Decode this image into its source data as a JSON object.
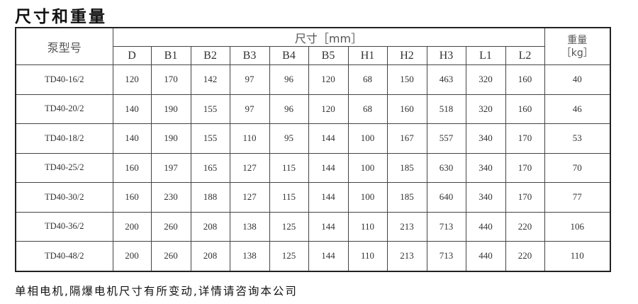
{
  "title": "尺寸和重量",
  "table": {
    "model_header": "泵型号",
    "dim_header": "尺寸［mm］",
    "weight_header_line1": "重量",
    "weight_header_line2": "［kg］",
    "columns": [
      "D",
      "B1",
      "B2",
      "B3",
      "B4",
      "B5",
      "H1",
      "H2",
      "H3",
      "L1",
      "L2"
    ],
    "rows": [
      {
        "model": "TD40-16/2",
        "values": [
          "120",
          "170",
          "142",
          "97",
          "96",
          "120",
          "68",
          "150",
          "463",
          "320",
          "160"
        ],
        "weight": "40"
      },
      {
        "model": "TD40-20/2",
        "values": [
          "140",
          "190",
          "155",
          "97",
          "96",
          "120",
          "68",
          "160",
          "518",
          "320",
          "160"
        ],
        "weight": "46"
      },
      {
        "model": "TD40-18/2",
        "values": [
          "140",
          "190",
          "155",
          "110",
          "95",
          "144",
          "100",
          "167",
          "557",
          "340",
          "170"
        ],
        "weight": "53"
      },
      {
        "model": "TD40-25/2",
        "values": [
          "160",
          "197",
          "165",
          "127",
          "115",
          "144",
          "100",
          "185",
          "630",
          "340",
          "170"
        ],
        "weight": "70"
      },
      {
        "model": "TD40-30/2",
        "values": [
          "160",
          "230",
          "188",
          "127",
          "115",
          "144",
          "100",
          "185",
          "640",
          "340",
          "170"
        ],
        "weight": "77"
      },
      {
        "model": "TD40-36/2",
        "values": [
          "200",
          "260",
          "208",
          "138",
          "125",
          "144",
          "110",
          "213",
          "713",
          "440",
          "220"
        ],
        "weight": "106"
      },
      {
        "model": "TD40-48/2",
        "values": [
          "200",
          "260",
          "208",
          "138",
          "125",
          "144",
          "110",
          "213",
          "713",
          "440",
          "220"
        ],
        "weight": "110"
      }
    ]
  },
  "footer": "单相电机,隔爆电机尺寸有所变动,详情请咨询本公司"
}
